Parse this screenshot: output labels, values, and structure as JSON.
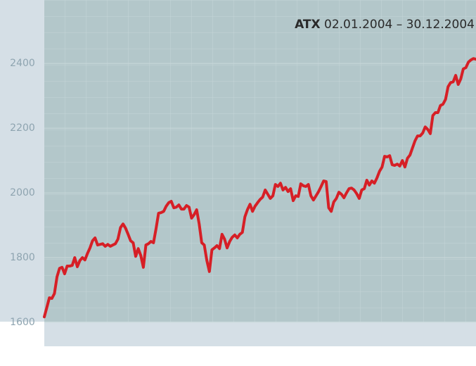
{
  "chart_data": {
    "type": "line",
    "title": {
      "name": "ATX",
      "range": "02.01.2004 – 30.12.2004"
    },
    "series": [
      {
        "name": "ATX",
        "color": "#d61f26",
        "values": [
          1617,
          1646,
          1676,
          1674,
          1689,
          1741,
          1767,
          1770,
          1750,
          1774,
          1774,
          1776,
          1800,
          1772,
          1791,
          1800,
          1793,
          1813,
          1830,
          1852,
          1861,
          1839,
          1841,
          1843,
          1835,
          1841,
          1835,
          1839,
          1843,
          1857,
          1893,
          1904,
          1891,
          1872,
          1852,
          1846,
          1804,
          1828,
          1807,
          1770,
          1839,
          1843,
          1850,
          1846,
          1889,
          1937,
          1939,
          1943,
          1959,
          1970,
          1974,
          1954,
          1956,
          1963,
          1950,
          1950,
          1961,
          1956,
          1922,
          1933,
          1948,
          1904,
          1846,
          1839,
          1791,
          1757,
          1824,
          1830,
          1837,
          1828,
          1872,
          1857,
          1830,
          1850,
          1863,
          1870,
          1861,
          1872,
          1878,
          1926,
          1948,
          1965,
          1943,
          1959,
          1970,
          1980,
          1987,
          2009,
          1996,
          1983,
          1991,
          2026,
          2020,
          2030,
          2009,
          2017,
          2004,
          2013,
          1976,
          1991,
          1989,
          2028,
          2022,
          2020,
          2026,
          1991,
          1978,
          1991,
          2004,
          2020,
          2037,
          2035,
          1954,
          1943,
          1972,
          1983,
          2002,
          1996,
          1985,
          2000,
          2013,
          2015,
          2009,
          1998,
          1983,
          2009,
          2013,
          2039,
          2024,
          2037,
          2030,
          2046,
          2067,
          2080,
          2113,
          2111,
          2115,
          2087,
          2085,
          2089,
          2083,
          2100,
          2080,
          2107,
          2117,
          2139,
          2161,
          2176,
          2176,
          2185,
          2204,
          2196,
          2183,
          2239,
          2248,
          2248,
          2270,
          2274,
          2289,
          2328,
          2341,
          2343,
          2363,
          2335,
          2352,
          2383,
          2387,
          2404,
          2411,
          2415,
          2413
        ]
      }
    ],
    "ylim": [
      1600,
      2596
    ],
    "yticks": [
      1600,
      1800,
      2000,
      2200,
      2400
    ],
    "grid": true
  }
}
